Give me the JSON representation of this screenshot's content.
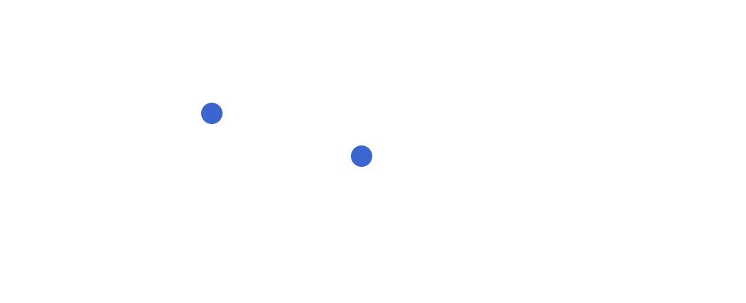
{
  "markers": [
    {
      "color": "#3b66cf"
    },
    {
      "color": "#3b66cf"
    }
  ],
  "background_color": "#ffffff"
}
